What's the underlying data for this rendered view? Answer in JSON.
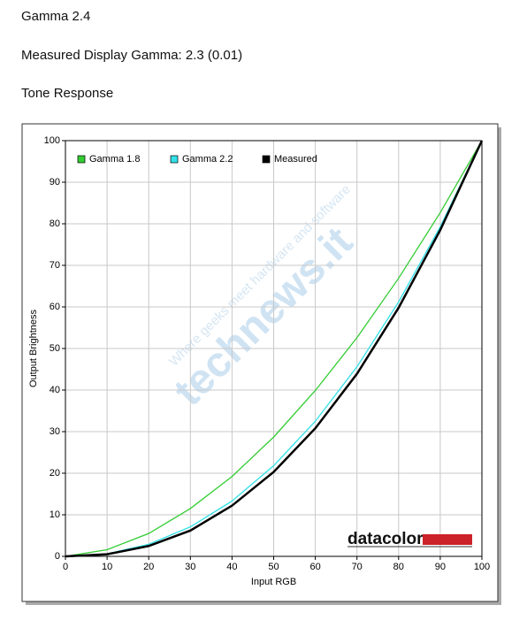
{
  "header": {
    "title": "Gamma 2.4",
    "measured": "Measured Display Gamma: 2.3 (0.01)",
    "section": "Tone Response"
  },
  "watermark": {
    "brand": "technews.it",
    "tagline": "Where geeks meet hardware and software"
  },
  "logo": {
    "text": "datacolor"
  },
  "chart_data": {
    "type": "line",
    "xlabel": "Input RGB",
    "ylabel": "Output Brightness",
    "x": [
      0,
      10,
      20,
      30,
      40,
      50,
      60,
      70,
      80,
      90,
      100
    ],
    "series": [
      {
        "name": "Gamma 1.8",
        "color": "#33cc33",
        "values": [
          0,
          1.6,
          5.5,
          11.5,
          19.2,
          28.7,
          39.9,
          52.6,
          66.9,
          82.7,
          100
        ]
      },
      {
        "name": "Gamma 2.2",
        "color": "#33e0e8",
        "values": [
          0,
          0.6,
          2.9,
          7.1,
          13.3,
          21.8,
          32.5,
          45.6,
          61.2,
          79.3,
          100
        ]
      },
      {
        "name": "Measured",
        "color": "#000000",
        "values": [
          0,
          0.5,
          2.5,
          6.2,
          12.2,
          20.3,
          30.8,
          43.9,
          59.8,
          78.5,
          100
        ]
      }
    ],
    "xlim": [
      0,
      100
    ],
    "ylim": [
      0,
      100
    ],
    "xticks": [
      0,
      10,
      20,
      30,
      40,
      50,
      60,
      70,
      80,
      90,
      100
    ],
    "yticks": [
      0,
      10,
      20,
      30,
      40,
      50,
      60,
      70,
      80,
      90,
      100
    ],
    "grid": true,
    "legend": "top-left"
  }
}
